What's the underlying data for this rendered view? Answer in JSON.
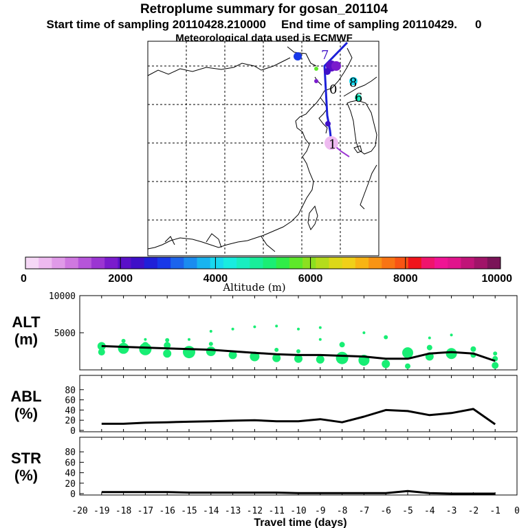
{
  "header": {
    "title": "Retroplume summary for gosan_201104",
    "start_label": "Start time of sampling 20110428.210000",
    "end_label": "End time of sampling 20110429.",
    "end_suffix": "0",
    "met_label": "Meteorological data used is ECMWF"
  },
  "colorbar": {
    "label": "Altitude (m)",
    "ticks": [
      "0",
      "2000",
      "4000",
      "6000",
      "8000",
      "10000"
    ],
    "colors": [
      "#f6d8f6",
      "#eebaf0",
      "#e09ae8",
      "#cf78e0",
      "#b655da",
      "#9b36d2",
      "#7a1ccc",
      "#5a10c8",
      "#3e10c8",
      "#2020d8",
      "#1838e8",
      "#1c64ec",
      "#1a8cf0",
      "#18b4f0",
      "#18d8f0",
      "#18ece0",
      "#18eec0",
      "#18ee9a",
      "#1aee74",
      "#30ec48",
      "#5ee82a",
      "#8ce020",
      "#b4dc1c",
      "#dcd818",
      "#f0d018",
      "#f8b414",
      "#f89414",
      "#f87414",
      "#f85414",
      "#f0141c",
      "#f0146c",
      "#f01494",
      "#e0148c",
      "#c01478",
      "#a01468",
      "#7a1458"
    ]
  },
  "map": {
    "labels": [
      {
        "text": "7",
        "color": "#3e10c8"
      },
      {
        "text": "8",
        "color": "#18d8f0"
      },
      {
        "text": "6",
        "color": "#18eec0"
      },
      {
        "text": "0",
        "color": "#3e10c8"
      },
      {
        "text": "1",
        "color": "#9b36d2"
      }
    ]
  },
  "chart_data": [
    {
      "type": "line",
      "title": "ALT",
      "ylabel": "ALT (m)",
      "ylabel_top": "ALT",
      "ylabel_unit": "(m)",
      "ylim": [
        0,
        10000
      ],
      "yticks": [
        "5000",
        "10000"
      ],
      "x": [
        -19,
        -18,
        -17,
        -16,
        -15,
        -14,
        -13,
        -12,
        -11,
        -10,
        -9,
        -8,
        -7,
        -6,
        -5,
        -4,
        -3,
        -2,
        -1
      ],
      "series": [
        {
          "name": "mean altitude",
          "values": [
            3200,
            3100,
            3000,
            2900,
            2800,
            2700,
            2500,
            2300,
            2100,
            2000,
            2000,
            1900,
            1800,
            1500,
            1500,
            2200,
            2400,
            2200,
            1200
          ]
        }
      ],
      "scatter": [
        {
          "x": -19,
          "y": 3200,
          "r": 6
        },
        {
          "x": -19,
          "y": 2400,
          "r": 5
        },
        {
          "x": -18,
          "y": 3900,
          "r": 3
        },
        {
          "x": -18,
          "y": 2900,
          "r": 8
        },
        {
          "x": -17,
          "y": 4100,
          "r": 2
        },
        {
          "x": -17,
          "y": 3300,
          "r": 5
        },
        {
          "x": -17,
          "y": 2800,
          "r": 9
        },
        {
          "x": -16,
          "y": 4000,
          "r": 3
        },
        {
          "x": -16,
          "y": 3300,
          "r": 5
        },
        {
          "x": -16,
          "y": 2200,
          "r": 6
        },
        {
          "x": -15,
          "y": 4100,
          "r": 2
        },
        {
          "x": -15,
          "y": 2400,
          "r": 9
        },
        {
          "x": -14,
          "y": 5200,
          "r": 2
        },
        {
          "x": -14,
          "y": 3500,
          "r": 3
        },
        {
          "x": -14,
          "y": 2500,
          "r": 7
        },
        {
          "x": -13,
          "y": 5500,
          "r": 2
        },
        {
          "x": -13,
          "y": 2000,
          "r": 6
        },
        {
          "x": -12,
          "y": 5800,
          "r": 2
        },
        {
          "x": -12,
          "y": 1800,
          "r": 7
        },
        {
          "x": -11,
          "y": 5900,
          "r": 2
        },
        {
          "x": -11,
          "y": 2700,
          "r": 3
        },
        {
          "x": -11,
          "y": 1600,
          "r": 6
        },
        {
          "x": -10,
          "y": 5500,
          "r": 2
        },
        {
          "x": -10,
          "y": 2500,
          "r": 3
        },
        {
          "x": -10,
          "y": 1500,
          "r": 6
        },
        {
          "x": -9,
          "y": 5700,
          "r": 2
        },
        {
          "x": -9,
          "y": 4100,
          "r": 2
        },
        {
          "x": -9,
          "y": 1400,
          "r": 6
        },
        {
          "x": -8,
          "y": 3400,
          "r": 4
        },
        {
          "x": -8,
          "y": 1600,
          "r": 9
        },
        {
          "x": -7,
          "y": 5000,
          "r": 2
        },
        {
          "x": -7,
          "y": 1300,
          "r": 8
        },
        {
          "x": -6,
          "y": 4400,
          "r": 3
        },
        {
          "x": -6,
          "y": 800,
          "r": 6
        },
        {
          "x": -5,
          "y": 2300,
          "r": 8
        },
        {
          "x": -5,
          "y": 500,
          "r": 4
        },
        {
          "x": -4,
          "y": 4300,
          "r": 2
        },
        {
          "x": -4,
          "y": 3000,
          "r": 4
        },
        {
          "x": -4,
          "y": 1800,
          "r": 6
        },
        {
          "x": -3,
          "y": 4700,
          "r": 2
        },
        {
          "x": -3,
          "y": 2200,
          "r": 8
        },
        {
          "x": -2,
          "y": 2800,
          "r": 4
        },
        {
          "x": -2,
          "y": 2000,
          "r": 4
        },
        {
          "x": -1,
          "y": 2200,
          "r": 3
        },
        {
          "x": -1,
          "y": 1500,
          "r": 4
        },
        {
          "x": -1,
          "y": 600,
          "r": 5
        }
      ]
    },
    {
      "type": "line",
      "title": "ABL",
      "ylabel": "ABL (%)",
      "ylabel_top": "ABL",
      "ylabel_unit": "(%)",
      "ylim": [
        0,
        100
      ],
      "yticks": [
        "0",
        "20",
        "40",
        "60",
        "80"
      ],
      "x": [
        -19,
        -18,
        -17,
        -16,
        -15,
        -14,
        -13,
        -12,
        -11,
        -10,
        -9,
        -8,
        -7,
        -6,
        -5,
        -4,
        -3,
        -2,
        -1
      ],
      "series": [
        {
          "name": "ABL fraction",
          "values": [
            13,
            13,
            15,
            16,
            17,
            18,
            19,
            20,
            18,
            18,
            22,
            16,
            27,
            40,
            38,
            30,
            34,
            42,
            12
          ]
        }
      ]
    },
    {
      "type": "line",
      "title": "STR",
      "ylabel": "STR (%)",
      "ylabel_top": "STR",
      "ylabel_unit": "(%)",
      "ylim": [
        0,
        100
      ],
      "yticks": [
        "0",
        "20",
        "40",
        "60",
        "80"
      ],
      "xlabel": "Travel time (days)",
      "xticks": [
        "-20",
        "-19",
        "-18",
        "-17",
        "-16",
        "-15",
        "-14",
        "-13",
        "-12",
        "-11",
        "-10",
        "-9",
        "-8",
        "-7",
        "-6",
        "-5",
        "-4",
        "-3",
        "-2",
        "-1",
        "0"
      ],
      "x": [
        -19,
        -18,
        -17,
        -16,
        -15,
        -14,
        -13,
        -12,
        -11,
        -10,
        -9,
        -8,
        -7,
        -6,
        -5,
        -4,
        -3,
        -2,
        -1
      ],
      "series": [
        {
          "name": "STR fraction",
          "values": [
            3,
            3,
            3,
            3,
            2,
            2,
            2,
            2,
            2,
            1,
            1,
            1,
            1,
            1,
            5,
            1,
            0,
            0,
            0
          ]
        }
      ]
    }
  ]
}
